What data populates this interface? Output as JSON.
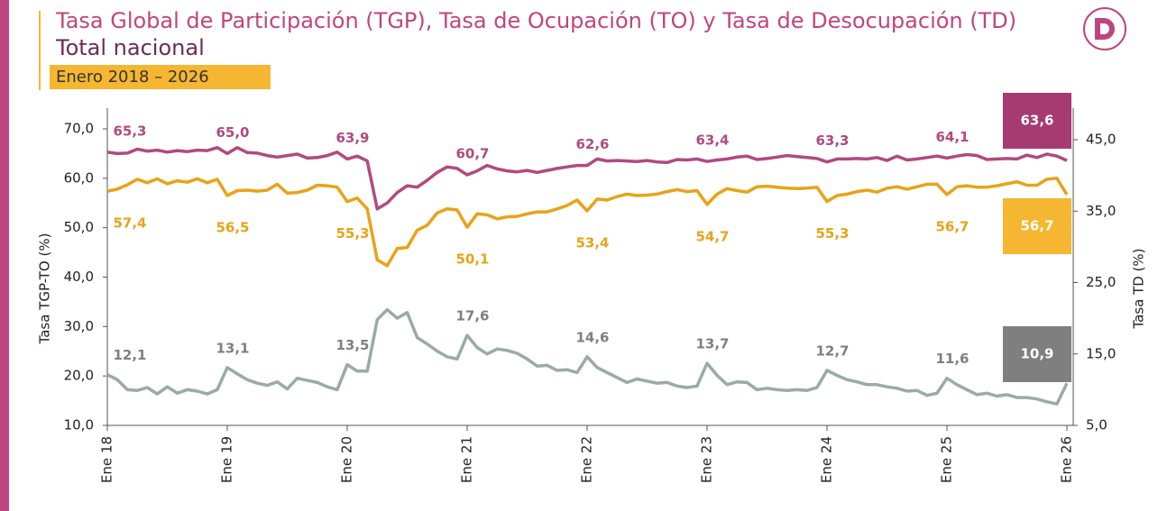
{
  "chart_data": {
    "type": "line",
    "title": "Tasa Global de Participación (TGP), Tasa de Ocupación (TO) y Tasa de Desocupación (TD)",
    "subtitle": "Total nacional",
    "period": "Enero 2018 – 2026",
    "y_label": "Tasa TGP-TO (%)",
    "y2_label": "Tasa TD (%)",
    "categories": [
      "Ene 18",
      null,
      null,
      null,
      null,
      null,
      null,
      null,
      null,
      null,
      null,
      null,
      "Ene 19",
      null,
      null,
      null,
      null,
      null,
      null,
      null,
      null,
      null,
      null,
      null,
      "Ene 20",
      null,
      null,
      null,
      null,
      null,
      null,
      null,
      null,
      null,
      null,
      null,
      "Ene 21",
      null,
      null,
      null,
      null,
      null,
      null,
      null,
      null,
      null,
      null,
      null,
      "Ene 22",
      null,
      null,
      null,
      null,
      null,
      null,
      null,
      null,
      null,
      null,
      null,
      "Ene 23",
      null,
      null,
      null,
      null,
      null,
      null,
      null,
      null,
      null,
      null,
      null,
      "Ene 24",
      null,
      null,
      null,
      null,
      null,
      null,
      null,
      null,
      null,
      null,
      null,
      "Ene 25",
      null,
      null,
      null,
      null,
      null,
      null,
      null,
      null,
      null,
      null,
      null,
      "Ene 26"
    ],
    "ylim": [
      10,
      70
    ],
    "yticks": [
      {
        "value": 10,
        "label": "10,0"
      },
      {
        "value": 20,
        "label": "20,0"
      },
      {
        "value": 30,
        "label": "30,0"
      },
      {
        "value": 40,
        "label": "40,0"
      },
      {
        "value": 50,
        "label": "50,0"
      },
      {
        "value": 60,
        "label": "60,0"
      },
      {
        "value": 70,
        "label": "70,0"
      }
    ],
    "y2lim": [
      5,
      45
    ],
    "y2ticks": [
      {
        "value": 5,
        "label": "5,0"
      },
      {
        "value": 15,
        "label": "15,0"
      },
      {
        "value": 25,
        "label": "25,0"
      },
      {
        "value": 35,
        "label": "35,0"
      },
      {
        "value": 45,
        "label": "45,0"
      }
    ],
    "series": [
      {
        "name": "TGP",
        "color": "#b04a7f",
        "values": [
          65.3,
          65.0,
          65.1,
          65.9,
          65.5,
          65.7,
          65.3,
          65.6,
          65.4,
          65.7,
          65.6,
          66.2,
          65.0,
          66.2,
          65.2,
          65.1,
          64.6,
          64.3,
          64.6,
          64.9,
          64.1,
          64.2,
          64.6,
          65.3,
          63.9,
          64.5,
          63.5,
          53.8,
          55.0,
          57.1,
          58.5,
          58.2,
          59.6,
          61.2,
          62.3,
          62.0,
          60.7,
          61.5,
          62.6,
          61.9,
          61.5,
          61.3,
          61.6,
          61.2,
          61.6,
          62.0,
          62.3,
          62.6,
          62.6,
          63.9,
          63.5,
          63.6,
          63.5,
          63.4,
          63.6,
          63.3,
          63.2,
          63.8,
          63.7,
          63.9,
          63.4,
          63.7,
          63.9,
          64.3,
          64.5,
          63.8,
          64.0,
          64.3,
          64.6,
          64.4,
          64.2,
          64.0,
          63.3,
          63.9,
          63.9,
          64.0,
          63.9,
          64.2,
          63.6,
          64.5,
          63.7,
          63.9,
          64.2,
          64.5,
          64.1,
          64.5,
          64.8,
          64.6,
          63.8,
          63.9,
          64.0,
          63.9,
          64.7,
          64.2,
          64.9,
          64.5,
          63.6
        ],
        "value_labels": [
          "65,3",
          null,
          null,
          null,
          null,
          null,
          null,
          null,
          null,
          null,
          null,
          null,
          "65,0",
          null,
          null,
          null,
          null,
          null,
          null,
          null,
          null,
          null,
          null,
          null,
          "63,9",
          null,
          null,
          null,
          null,
          null,
          null,
          null,
          null,
          null,
          null,
          null,
          "60,7",
          null,
          null,
          null,
          null,
          null,
          null,
          null,
          null,
          null,
          null,
          null,
          "62,6",
          null,
          null,
          null,
          null,
          null,
          null,
          null,
          null,
          null,
          null,
          null,
          "63,4",
          null,
          null,
          null,
          null,
          null,
          null,
          null,
          null,
          null,
          null,
          null,
          "63,3",
          null,
          null,
          null,
          null,
          null,
          null,
          null,
          null,
          null,
          null,
          null,
          "64,1",
          null,
          null,
          null,
          null,
          null,
          null,
          null,
          null,
          null,
          null,
          null,
          "63,6"
        ]
      },
      {
        "name": "TO",
        "color": "#e8a317",
        "values": [
          57.4,
          57.8,
          58.7,
          59.8,
          59.1,
          59.9,
          58.9,
          59.5,
          59.2,
          59.9,
          59.1,
          59.8,
          56.5,
          57.5,
          57.6,
          57.4,
          57.6,
          58.8,
          57.0,
          57.1,
          57.6,
          58.6,
          58.5,
          58.2,
          55.3,
          56.0,
          53.8,
          43.5,
          42.3,
          45.8,
          46.0,
          49.5,
          50.5,
          53.0,
          53.8,
          53.6,
          50.1,
          52.8,
          52.6,
          51.8,
          52.2,
          52.3,
          52.8,
          53.2,
          53.2,
          53.8,
          54.5,
          55.6,
          53.4,
          55.8,
          55.6,
          56.3,
          56.8,
          56.5,
          56.6,
          56.8,
          57.3,
          57.7,
          57.3,
          57.5,
          54.7,
          56.8,
          57.9,
          57.5,
          57.2,
          58.3,
          58.4,
          58.2,
          58.0,
          57.9,
          58.0,
          58.2,
          55.3,
          56.5,
          56.8,
          57.3,
          57.6,
          57.2,
          58.0,
          58.3,
          57.8,
          58.3,
          58.8,
          58.8,
          56.7,
          58.3,
          58.5,
          58.2,
          58.2,
          58.5,
          58.9,
          59.3,
          58.6,
          58.6,
          59.8,
          60.0,
          56.7
        ],
        "value_labels": [
          "57,4",
          null,
          null,
          null,
          null,
          null,
          null,
          null,
          null,
          null,
          null,
          null,
          "56,5",
          null,
          null,
          null,
          null,
          null,
          null,
          null,
          null,
          null,
          null,
          null,
          "55,3",
          null,
          null,
          null,
          null,
          null,
          null,
          null,
          null,
          null,
          null,
          null,
          "50,1",
          null,
          null,
          null,
          null,
          null,
          null,
          null,
          null,
          null,
          null,
          null,
          "53,4",
          null,
          null,
          null,
          null,
          null,
          null,
          null,
          null,
          null,
          null,
          null,
          "54,7",
          null,
          null,
          null,
          null,
          null,
          null,
          null,
          null,
          null,
          null,
          null,
          "55,3",
          null,
          null,
          null,
          null,
          null,
          null,
          null,
          null,
          null,
          null,
          null,
          "56,7",
          null,
          null,
          null,
          null,
          null,
          null,
          null,
          null,
          null,
          null,
          null,
          "56,7"
        ]
      },
      {
        "name": "TD",
        "color": "#9aaaa8",
        "axis": "y2",
        "values": [
          12.1,
          11.4,
          10.0,
          9.9,
          10.3,
          9.4,
          10.4,
          9.5,
          10.0,
          9.8,
          9.4,
          10.0,
          13.1,
          12.2,
          11.4,
          10.9,
          10.6,
          11.1,
          10.1,
          11.6,
          11.3,
          11.0,
          10.4,
          10.0,
          13.5,
          12.6,
          12.6,
          19.8,
          21.2,
          20.0,
          20.8,
          17.3,
          16.4,
          15.4,
          14.6,
          14.3,
          17.6,
          15.9,
          15.0,
          15.7,
          15.5,
          15.1,
          14.3,
          13.3,
          13.4,
          12.7,
          12.8,
          12.4,
          14.6,
          13.1,
          12.4,
          11.7,
          11.0,
          11.5,
          11.2,
          10.9,
          11.0,
          10.5,
          10.3,
          10.5,
          13.7,
          12.0,
          10.7,
          11.1,
          11.0,
          10.0,
          10.2,
          10.0,
          9.9,
          10.0,
          9.9,
          10.3,
          12.7,
          12.0,
          11.4,
          11.1,
          10.7,
          10.7,
          10.4,
          10.2,
          9.8,
          9.9,
          9.2,
          9.5,
          11.6,
          10.7,
          10.0,
          9.3,
          9.5,
          9.1,
          9.3,
          8.9,
          8.9,
          8.7,
          8.3,
          8.0,
          10.9
        ],
        "value_labels": [
          "12,1",
          null,
          null,
          null,
          null,
          null,
          null,
          null,
          null,
          null,
          null,
          null,
          "13,1",
          null,
          null,
          null,
          null,
          null,
          null,
          null,
          null,
          null,
          null,
          null,
          "13,5",
          null,
          null,
          null,
          null,
          null,
          null,
          null,
          null,
          null,
          null,
          null,
          "17,6",
          null,
          null,
          null,
          null,
          null,
          null,
          null,
          null,
          null,
          null,
          null,
          "14,6",
          null,
          null,
          null,
          null,
          null,
          null,
          null,
          null,
          null,
          null,
          null,
          "13,7",
          null,
          null,
          null,
          null,
          null,
          null,
          null,
          null,
          null,
          null,
          null,
          "12,7",
          null,
          null,
          null,
          null,
          null,
          null,
          null,
          null,
          null,
          null,
          null,
          "11,6",
          null,
          null,
          null,
          null,
          null,
          null,
          null,
          null,
          null,
          null,
          null,
          "10,9"
        ]
      }
    ]
  }
}
